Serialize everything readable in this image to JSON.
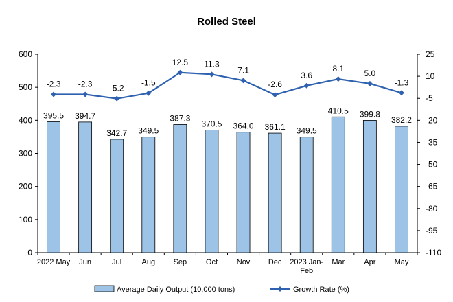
{
  "chart_data": {
    "type": "bar",
    "title": "Rolled Steel",
    "categories": [
      [
        "2022 May"
      ],
      [
        "Jun"
      ],
      [
        "Jul"
      ],
      [
        "Aug"
      ],
      [
        "Sep"
      ],
      [
        "Oct"
      ],
      [
        "Nov"
      ],
      [
        "Dec"
      ],
      [
        "2023 Jan-",
        "Feb"
      ],
      [
        "Mar"
      ],
      [
        "Apr"
      ],
      [
        "May"
      ]
    ],
    "series": [
      {
        "name": "Average Daily Output (10,000 tons)",
        "type": "bar",
        "axis": "left",
        "color": "#9dc3e6",
        "values": [
          395.5,
          394.7,
          342.7,
          349.5,
          387.3,
          370.5,
          364.0,
          361.1,
          349.5,
          410.5,
          399.8,
          382.2
        ],
        "labels": [
          "395.5",
          "394.7",
          "342.7",
          "349.5",
          "387.3",
          "370.5",
          "364.0",
          "361.1",
          "349.5",
          "410.5",
          "399.8",
          "382.2"
        ]
      },
      {
        "name": "Growth Rate (%)",
        "type": "line",
        "axis": "right",
        "color": "#2e62b0",
        "values": [
          -2.3,
          -2.3,
          -5.2,
          -1.5,
          12.5,
          11.3,
          7.1,
          -2.6,
          3.6,
          8.1,
          5.0,
          -1.3
        ],
        "labels": [
          "-2.3",
          "-2.3",
          "-5.2",
          "-1.5",
          "12.5",
          "11.3",
          "7.1",
          "-2.6",
          "3.6",
          "8.1",
          "5.0",
          "-1.3"
        ]
      }
    ],
    "y_left": {
      "min": 0,
      "max": 600,
      "ticks": [
        0,
        100,
        200,
        300,
        400,
        500,
        600
      ]
    },
    "y_right": {
      "min": -110,
      "max": 25,
      "ticks": [
        -110,
        -95,
        -80,
        -65,
        -50,
        -35,
        -20,
        -5,
        10,
        25
      ]
    },
    "legend": {
      "placement": "bottom"
    }
  }
}
